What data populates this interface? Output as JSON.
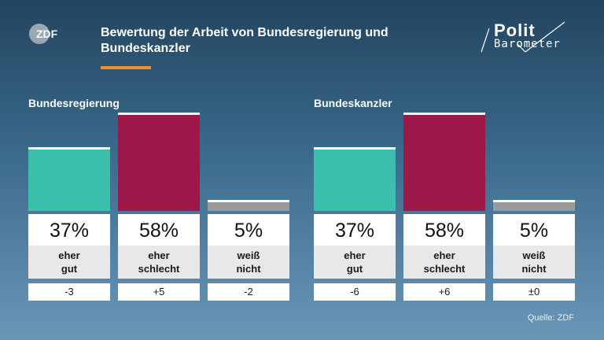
{
  "header": {
    "logo_text": "ZDF",
    "title": "Bewertung der Arbeit von Bundesregierung und Bundeskanzler",
    "brand_line1": "Polit",
    "brand_line2": "Barometer",
    "accent_color": "#f28c28"
  },
  "source": "Quelle: ZDF",
  "chart_data": [
    {
      "type": "bar",
      "title": "Bundesregierung",
      "categories": [
        "eher gut",
        "eher schlecht",
        "weiß nicht"
      ],
      "category_lines": [
        [
          "eher",
          "gut"
        ],
        [
          "eher",
          "schlecht"
        ],
        [
          "weiß",
          "nicht"
        ]
      ],
      "values": [
        37,
        58,
        5
      ],
      "value_labels": [
        "37%",
        "58%",
        "5%"
      ],
      "changes": [
        "-3",
        "+5",
        "-2"
      ],
      "colors": [
        "#3bbfad",
        "#9b1848",
        "#9a9a9a"
      ],
      "ylim": [
        0,
        58
      ]
    },
    {
      "type": "bar",
      "title": "Bundeskanzler",
      "categories": [
        "eher gut",
        "eher schlecht",
        "weiß nicht"
      ],
      "category_lines": [
        [
          "eher",
          "gut"
        ],
        [
          "eher",
          "schlecht"
        ],
        [
          "weiß",
          "nicht"
        ]
      ],
      "values": [
        37,
        58,
        5
      ],
      "value_labels": [
        "37%",
        "58%",
        "5%"
      ],
      "changes": [
        "-6",
        "+6",
        "±0"
      ],
      "colors": [
        "#3bbfad",
        "#9b1848",
        "#9a9a9a"
      ],
      "ylim": [
        0,
        58
      ]
    }
  ]
}
